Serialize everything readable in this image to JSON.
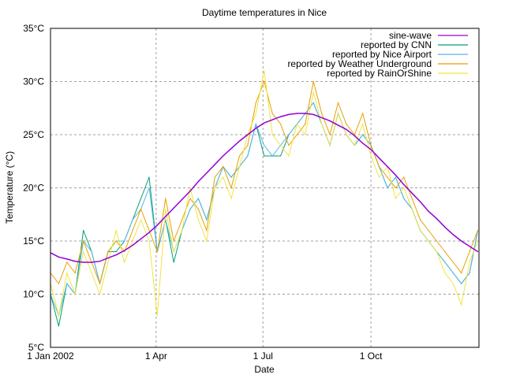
{
  "chart_data": {
    "type": "line",
    "title": "Daytime temperatures in Nice",
    "xlabel": "Date",
    "ylabel": "Temperature (°C)",
    "xlim": [
      "2002-01-01",
      "2003-01-01"
    ],
    "ylim": [
      5,
      35
    ],
    "grid": true,
    "legend_position": "top-right",
    "x_ticks": [
      {
        "date": "2002-01-01",
        "label": "1 Jan 2002"
      },
      {
        "date": "2002-04-01",
        "label": "1 Apr"
      },
      {
        "date": "2002-07-01",
        "label": "1 Jul"
      },
      {
        "date": "2002-10-01",
        "label": "1 Oct"
      }
    ],
    "y_ticks": [
      {
        "value": 5,
        "label": "5°C"
      },
      {
        "value": 10,
        "label": "10°C"
      },
      {
        "value": 15,
        "label": "15°C"
      },
      {
        "value": 20,
        "label": "20°C"
      },
      {
        "value": 25,
        "label": "25°C"
      },
      {
        "value": 30,
        "label": "30°C"
      },
      {
        "value": 35,
        "label": "35°C"
      }
    ],
    "dates": [
      "2002-01-01",
      "2002-01-08",
      "2002-01-15",
      "2002-01-22",
      "2002-01-29",
      "2002-02-05",
      "2002-02-12",
      "2002-02-19",
      "2002-02-26",
      "2002-03-05",
      "2002-03-12",
      "2002-03-19",
      "2002-03-26",
      "2002-04-02",
      "2002-04-09",
      "2002-04-16",
      "2002-04-23",
      "2002-04-30",
      "2002-05-07",
      "2002-05-14",
      "2002-05-21",
      "2002-05-28",
      "2002-06-04",
      "2002-06-11",
      "2002-06-18",
      "2002-06-25",
      "2002-07-02",
      "2002-07-09",
      "2002-07-16",
      "2002-07-23",
      "2002-07-30",
      "2002-08-06",
      "2002-08-13",
      "2002-08-20",
      "2002-08-27",
      "2002-09-03",
      "2002-09-10",
      "2002-09-17",
      "2002-09-24",
      "2002-10-01",
      "2002-10-08",
      "2002-10-15",
      "2002-10-22",
      "2002-10-29",
      "2002-11-05",
      "2002-11-12",
      "2002-11-19",
      "2002-11-26",
      "2002-12-03",
      "2002-12-10",
      "2002-12-17",
      "2002-12-24",
      "2002-12-31"
    ],
    "series": [
      {
        "name": "sine-wave",
        "color": "#9400d3",
        "values": [
          13.9,
          13.5,
          13.3,
          13.1,
          13.0,
          13.0,
          13.1,
          13.4,
          13.7,
          14.1,
          14.6,
          15.2,
          15.8,
          16.5,
          17.3,
          18.1,
          18.9,
          19.7,
          20.6,
          21.4,
          22.2,
          23.0,
          23.7,
          24.4,
          25.0,
          25.6,
          26.1,
          26.4,
          26.7,
          26.9,
          27.0,
          27.0,
          26.9,
          26.6,
          26.3,
          25.9,
          25.5,
          24.9,
          24.2,
          23.6,
          22.8,
          22.0,
          21.2,
          20.3,
          19.5,
          18.7,
          17.8,
          17.1,
          16.3,
          15.6,
          15.0,
          14.5,
          14.0
        ]
      },
      {
        "name": "reported by CNN",
        "color": "#009e73",
        "values": [
          10,
          7,
          11,
          10,
          16,
          14,
          11,
          14,
          14,
          15,
          17,
          19,
          21,
          14,
          17,
          13,
          16,
          18,
          19,
          17,
          20,
          22,
          21,
          22,
          23,
          26,
          23,
          23,
          23,
          25,
          26,
          27,
          28,
          26,
          24,
          27,
          25,
          24,
          25,
          24,
          22,
          20,
          21,
          19,
          18,
          16,
          15,
          14,
          13,
          12,
          11,
          12,
          16
        ]
      },
      {
        "name": "reported by Nice Airport",
        "color": "#56b4e9",
        "values": [
          10,
          8,
          11,
          10,
          15,
          14,
          11,
          14,
          15,
          15,
          17,
          18,
          20,
          14,
          17,
          14,
          16,
          18,
          19,
          17,
          20,
          22,
          21,
          22,
          23,
          26,
          24,
          23,
          24,
          25,
          26,
          27,
          28,
          26,
          24,
          27,
          25,
          24,
          25,
          24,
          22,
          20,
          21,
          19,
          18,
          16,
          15,
          14,
          13,
          12,
          11,
          12,
          16
        ]
      },
      {
        "name": "reported by Weather Underground",
        "color": "#e69f00",
        "values": [
          12,
          11,
          13,
          12,
          15,
          13,
          11,
          14,
          15,
          14,
          16,
          18,
          16,
          14,
          19,
          15,
          17,
          19,
          18,
          16,
          21,
          22,
          20,
          23,
          24,
          28,
          30,
          27,
          26,
          24,
          25,
          26,
          30,
          27,
          25,
          28,
          26,
          25,
          27,
          24,
          22,
          21,
          20,
          21,
          19,
          17,
          16,
          15,
          14,
          13,
          12,
          14,
          16
        ]
      },
      {
        "name": "reported by RainOrShine",
        "color": "#f0e442",
        "values": [
          11,
          8,
          12,
          10,
          14,
          12,
          10,
          13,
          16,
          13,
          15,
          17,
          15,
          8,
          18,
          14,
          16,
          20,
          17,
          15,
          20,
          21,
          19,
          22,
          25,
          27,
          31,
          25,
          24,
          23,
          26,
          25,
          29,
          26,
          24,
          27,
          25,
          24,
          26,
          23,
          21,
          22,
          19,
          20,
          18,
          16,
          15,
          14,
          12,
          11,
          9,
          13,
          15
        ]
      }
    ]
  }
}
